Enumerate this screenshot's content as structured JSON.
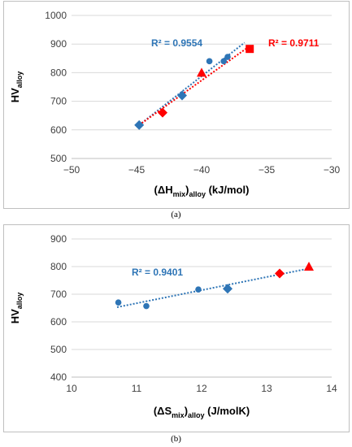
{
  "chart_data": [
    {
      "type": "scatter",
      "title": "",
      "xlabel": {
        "open": "(ΔH",
        "sub": "mix",
        "close": ")",
        "sub2": "alloy",
        "unit": " (kJ/mol)"
      },
      "ylabel": {
        "main": "HV",
        "sub": "alloy"
      },
      "xlim": [
        -50,
        -30
      ],
      "ylim": [
        500,
        1000
      ],
      "xticks": [
        -50,
        -45,
        -40,
        -35,
        -30
      ],
      "yticks": [
        500,
        600,
        700,
        800,
        900,
        1000
      ],
      "grid": "horizontal",
      "series": [
        {
          "color": "#2e75b6",
          "points": [
            {
              "x": -44.8,
              "y": 617,
              "marker": "diamond"
            },
            {
              "x": -41.5,
              "y": 720,
              "marker": "diamond"
            },
            {
              "x": -39.4,
              "y": 840,
              "marker": "circle"
            },
            {
              "x": -38.3,
              "y": 840,
              "marker": "circle"
            },
            {
              "x": -38.0,
              "y": 855,
              "marker": "circle"
            }
          ],
          "trendline": {
            "x": [
              -44.8,
              -36.7
            ],
            "y": [
              617,
              905
            ]
          },
          "r2_label": "R² = 0.9554"
        },
        {
          "color": "#ff0000",
          "points": [
            {
              "x": -43.0,
              "y": 660,
              "marker": "diamond"
            },
            {
              "x": -40.0,
              "y": 800,
              "marker": "triangle"
            },
            {
              "x": -36.3,
              "y": 883,
              "marker": "square"
            }
          ],
          "trendline": {
            "x": [
              -44.8,
              -36.3
            ],
            "y": [
              617,
              893
            ]
          },
          "r2_label": "R² = 0.9711"
        }
      ]
    },
    {
      "type": "scatter",
      "title": "",
      "xlabel": {
        "open": "(ΔS",
        "sub": "mix",
        "close": ")",
        "sub2": "alloy",
        "unit": " (J/molK)"
      },
      "ylabel": {
        "main": "HV",
        "sub": "alloy"
      },
      "xlim": [
        10,
        14
      ],
      "ylim": [
        400,
        900
      ],
      "xticks": [
        10,
        11,
        12,
        13,
        14
      ],
      "yticks": [
        400,
        500,
        600,
        700,
        800,
        900
      ],
      "grid": "horizontal",
      "series": [
        {
          "color": "#2e75b6",
          "points": [
            {
              "x": 10.72,
              "y": 670,
              "marker": "circle"
            },
            {
              "x": 11.15,
              "y": 657,
              "marker": "circle"
            },
            {
              "x": 11.95,
              "y": 717,
              "marker": "circle"
            },
            {
              "x": 12.4,
              "y": 720,
              "marker": "diamond"
            }
          ],
          "trendline": {
            "x": [
              10.7,
              13.65
            ],
            "y": [
              653,
              793
            ]
          },
          "r2_label": "R² = 0.9401"
        },
        {
          "color": "#ff0000",
          "points": [
            {
              "x": 13.2,
              "y": 775,
              "marker": "diamond"
            },
            {
              "x": 13.65,
              "y": 800,
              "marker": "triangle"
            }
          ]
        }
      ]
    }
  ],
  "captions": [
    "(a)",
    "(b)"
  ]
}
